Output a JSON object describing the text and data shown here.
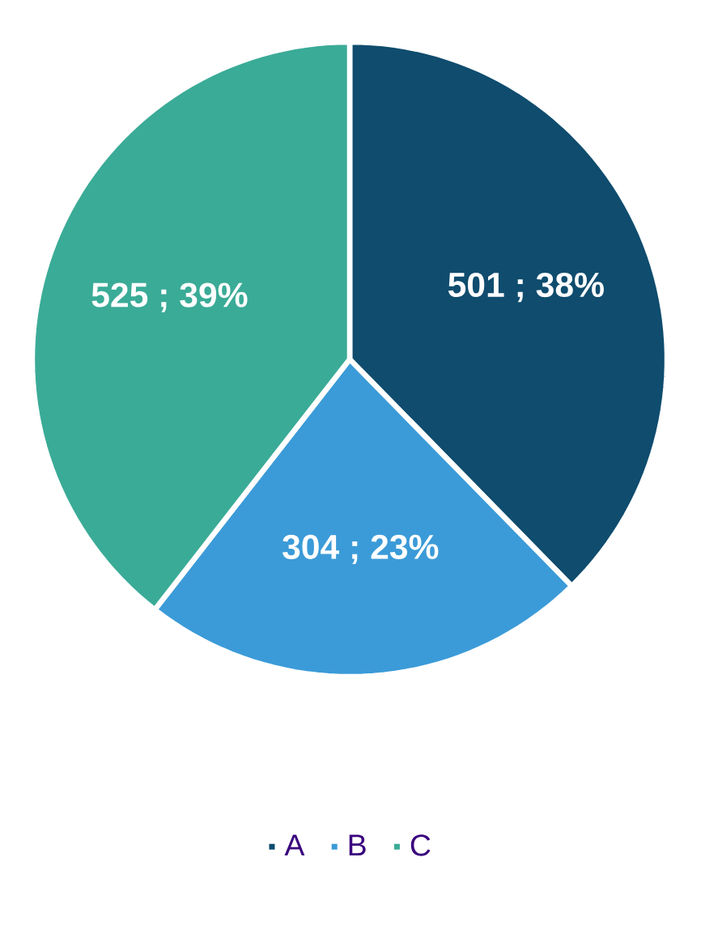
{
  "chart_data": {
    "type": "pie",
    "categories": [
      "A",
      "B",
      "C"
    ],
    "values": [
      501,
      304,
      525
    ],
    "value_labels": [
      "501 ; 38%",
      "304 ; 23%",
      "525 ; 39%"
    ],
    "colors": [
      "#0f4c6e",
      "#3b9bd8",
      "#3aab97"
    ],
    "legend": "bottom"
  }
}
